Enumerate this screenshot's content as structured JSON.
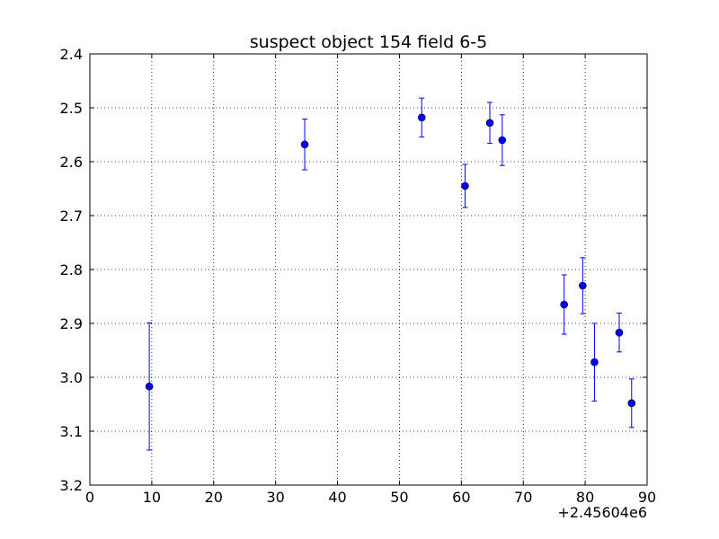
{
  "chart_data": {
    "type": "scatter",
    "title": "suspect object 154 field 6-5",
    "xlabel": "",
    "ylabel": "",
    "x_offset_label": "+2.45604e6",
    "xlim": [
      0,
      90
    ],
    "ylim": [
      2.4,
      3.2
    ],
    "y_inverted": true,
    "x_ticks": [
      0,
      10,
      20,
      30,
      40,
      50,
      60,
      70,
      80,
      90
    ],
    "x_tick_labels": [
      "0",
      "10",
      "20",
      "30",
      "40",
      "50",
      "60",
      "70",
      "80",
      "90"
    ],
    "y_ticks": [
      2.4,
      2.5,
      2.6,
      2.7,
      2.8,
      2.9,
      3.0,
      3.1,
      3.2
    ],
    "y_tick_labels": [
      "2.4",
      "2.5",
      "2.6",
      "2.7",
      "2.8",
      "2.9",
      "3.0",
      "3.1",
      "3.2"
    ],
    "grid": true,
    "error_bars": true,
    "color": "#0000ff",
    "x": [
      9.6,
      34.7,
      53.6,
      60.6,
      64.6,
      66.6,
      76.6,
      79.6,
      81.5,
      85.5,
      87.5
    ],
    "y": [
      3.017,
      2.568,
      2.518,
      2.645,
      2.528,
      2.56,
      2.865,
      2.83,
      2.972,
      2.917,
      3.048
    ],
    "yerr": [
      0.118,
      0.047,
      0.036,
      0.04,
      0.038,
      0.047,
      0.055,
      0.052,
      0.072,
      0.036,
      0.045
    ]
  }
}
